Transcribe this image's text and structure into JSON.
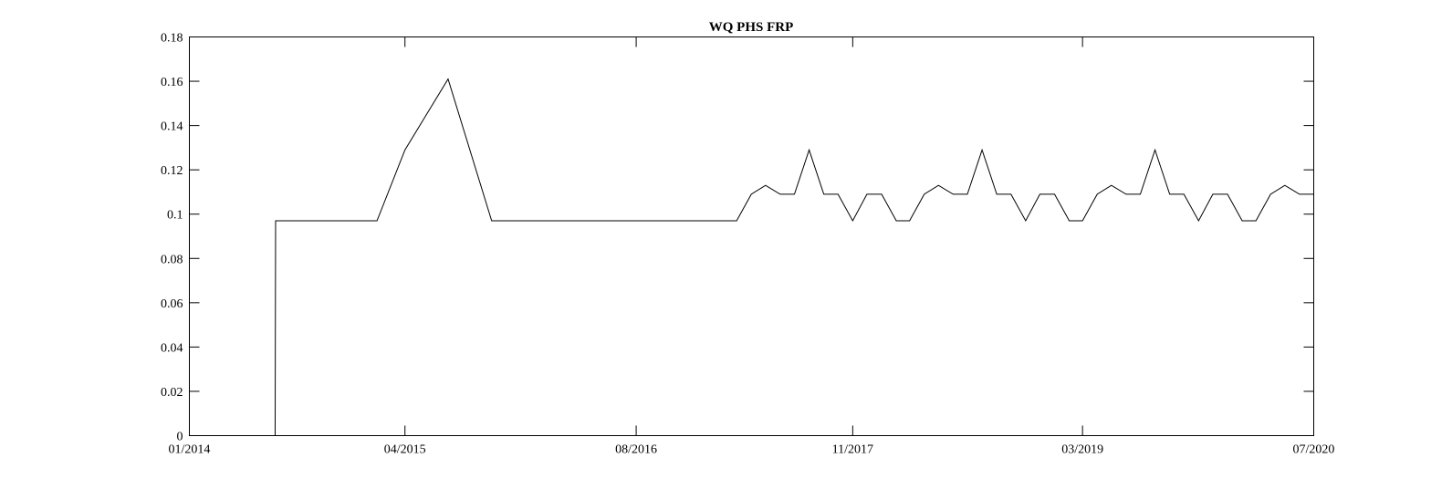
{
  "chart_data": {
    "type": "line",
    "title": "WQ PHS FRP",
    "xlabel": "",
    "ylabel": "",
    "grid": false,
    "legend": "none",
    "xlim": [
      "2014-01-01",
      "2020-07-01"
    ],
    "ylim": [
      0,
      0.18
    ],
    "yticks": [
      0,
      0.02,
      0.04,
      0.06,
      0.08,
      0.1,
      0.12,
      0.14,
      0.16,
      0.18
    ],
    "ytick_labels": [
      "0",
      "0.02",
      "0.04",
      "0.06",
      "0.08",
      "0.1",
      "0.12",
      "0.14",
      "0.16",
      "0.18"
    ],
    "xticks": [
      "2014-01-01",
      "2015-04-01",
      "2016-08-01",
      "2017-11-01",
      "2019-03-01",
      "2020-07-01"
    ],
    "xtick_labels": [
      "01/2014",
      "04/2015",
      "08/2016",
      "11/2017",
      "03/2019",
      "07/2020"
    ],
    "series": [
      {
        "color": "#000000",
        "x": [
          "2014-01-01",
          "2014-07-01",
          "2014-07-02",
          "2015-02-01",
          "2015-04-01",
          "2015-07-01",
          "2015-10-01",
          "2017-03-01",
          "2017-04-01",
          "2017-05-01",
          "2017-06-01",
          "2017-07-01",
          "2017-08-01",
          "2017-09-01",
          "2017-10-01",
          "2017-11-01",
          "2017-12-01",
          "2018-01-01",
          "2018-02-01",
          "2018-03-01",
          "2018-04-01",
          "2018-05-01",
          "2018-06-01",
          "2018-07-01",
          "2018-08-01",
          "2018-09-01",
          "2018-10-01",
          "2018-11-01",
          "2018-12-01",
          "2019-01-01",
          "2019-02-01",
          "2019-03-01",
          "2019-04-01",
          "2019-05-01",
          "2019-06-01",
          "2019-07-01",
          "2019-08-01",
          "2019-09-01",
          "2019-10-01",
          "2019-11-01",
          "2019-12-01",
          "2020-01-01",
          "2020-02-01",
          "2020-03-01",
          "2020-04-01",
          "2020-05-01",
          "2020-06-01",
          "2020-07-01"
        ],
        "values": [
          0,
          0,
          0.097,
          0.097,
          0.129,
          0.161,
          0.097,
          0.097,
          0.109,
          0.113,
          0.109,
          0.109,
          0.129,
          0.109,
          0.109,
          0.097,
          0.109,
          0.109,
          0.097,
          0.097,
          0.109,
          0.113,
          0.109,
          0.109,
          0.129,
          0.109,
          0.109,
          0.097,
          0.109,
          0.109,
          0.097,
          0.097,
          0.109,
          0.113,
          0.109,
          0.109,
          0.129,
          0.109,
          0.109,
          0.097,
          0.109,
          0.109,
          0.097,
          0.097,
          0.109,
          0.113,
          0.109,
          0.109
        ]
      }
    ]
  }
}
